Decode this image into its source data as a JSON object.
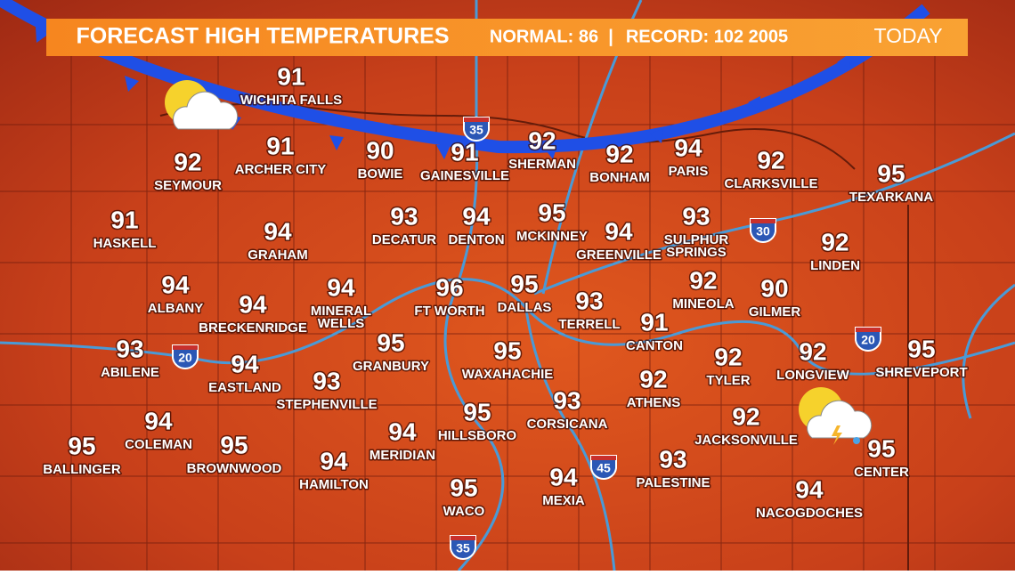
{
  "header": {
    "title": "FORECAST HIGH TEMPERATURES",
    "normal": "NORMAL: 86",
    "separator": "|",
    "record": "RECORD: 102 2005",
    "day": "TODAY"
  },
  "cities": [
    {
      "lines": [
        "WICHITA FALLS"
      ],
      "temp": 91
    },
    {
      "lines": [
        "SEYMOUR"
      ],
      "temp": 92
    },
    {
      "lines": [
        "ARCHER CITY"
      ],
      "temp": 91
    },
    {
      "lines": [
        "BOWIE"
      ],
      "temp": 90
    },
    {
      "lines": [
        "GAINESVILLE"
      ],
      "temp": 91
    },
    {
      "lines": [
        "SHERMAN"
      ],
      "temp": 92
    },
    {
      "lines": [
        "BONHAM"
      ],
      "temp": 92
    },
    {
      "lines": [
        "PARIS"
      ],
      "temp": 94
    },
    {
      "lines": [
        "CLARKSVILLE"
      ],
      "temp": 92
    },
    {
      "lines": [
        "TEXARKANA"
      ],
      "temp": 95
    },
    {
      "lines": [
        "HASKELL"
      ],
      "temp": 91
    },
    {
      "lines": [
        "GRAHAM"
      ],
      "temp": 94
    },
    {
      "lines": [
        "DECATUR"
      ],
      "temp": 93
    },
    {
      "lines": [
        "DENTON"
      ],
      "temp": 94
    },
    {
      "lines": [
        "MCKINNEY"
      ],
      "temp": 95
    },
    {
      "lines": [
        "GREENVILLE"
      ],
      "temp": 94
    },
    {
      "lines": [
        "SULPHUR",
        "SPRINGS"
      ],
      "temp": 93
    },
    {
      "lines": [
        "LINDEN"
      ],
      "temp": 92
    },
    {
      "lines": [
        "ALBANY"
      ],
      "temp": 94
    },
    {
      "lines": [
        "BRECKENRIDGE"
      ],
      "temp": 94
    },
    {
      "lines": [
        "MINERAL",
        "WELLS"
      ],
      "temp": 94
    },
    {
      "lines": [
        "FT WORTH"
      ],
      "temp": 96
    },
    {
      "lines": [
        "DALLAS"
      ],
      "temp": 95
    },
    {
      "lines": [
        "TERRELL"
      ],
      "temp": 93
    },
    {
      "lines": [
        "MINEOLA"
      ],
      "temp": 92
    },
    {
      "lines": [
        "GILMER"
      ],
      "temp": 90
    },
    {
      "lines": [
        "CANTON"
      ],
      "temp": 91
    },
    {
      "lines": [
        "ABILENE"
      ],
      "temp": 93
    },
    {
      "lines": [
        "EASTLAND"
      ],
      "temp": 94
    },
    {
      "lines": [
        "GRANBURY"
      ],
      "temp": 95
    },
    {
      "lines": [
        "WAXAHACHIE"
      ],
      "temp": 95
    },
    {
      "lines": [
        "TYLER"
      ],
      "temp": 92
    },
    {
      "lines": [
        "LONGVIEW"
      ],
      "temp": 92
    },
    {
      "lines": [
        "SHREVEPORT"
      ],
      "temp": 95
    },
    {
      "lines": [
        "STEPHENVILLE"
      ],
      "temp": 93
    },
    {
      "lines": [
        "ATHENS"
      ],
      "temp": 92
    },
    {
      "lines": [
        "CORSICANA"
      ],
      "temp": 93
    },
    {
      "lines": [
        "COLEMAN"
      ],
      "temp": 94
    },
    {
      "lines": [
        "HILLSBORO"
      ],
      "temp": 95
    },
    {
      "lines": [
        "JACKSONVILLE"
      ],
      "temp": 92
    },
    {
      "lines": [
        "BALLINGER"
      ],
      "temp": 95
    },
    {
      "lines": [
        "BROWNWOOD"
      ],
      "temp": 95
    },
    {
      "lines": [
        "MERIDIAN"
      ],
      "temp": 94
    },
    {
      "lines": [
        "CENTER"
      ],
      "temp": 95
    },
    {
      "lines": [
        "HAMILTON"
      ],
      "temp": 94
    },
    {
      "lines": [
        "PALESTINE"
      ],
      "temp": 93
    },
    {
      "lines": [
        "MEXIA"
      ],
      "temp": 94
    },
    {
      "lines": [
        "WACO"
      ],
      "temp": 95
    },
    {
      "lines": [
        "NACOGDOCHES"
      ],
      "temp": 94
    }
  ],
  "shields": [
    "35",
    "20",
    "30",
    "20",
    "45",
    "35"
  ]
}
